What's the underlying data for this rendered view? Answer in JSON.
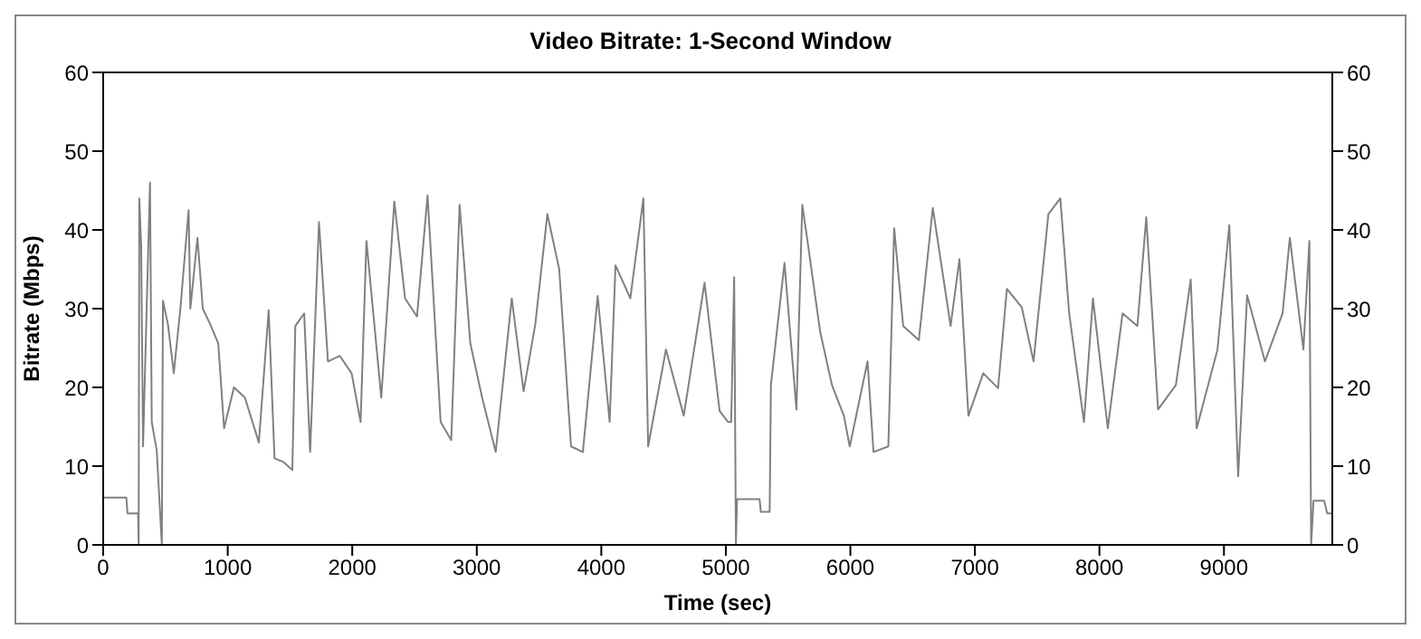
{
  "chart_data": {
    "type": "line",
    "title": "Video Bitrate: 1-Second Window",
    "xlabel": "Time (sec)",
    "ylabel": "Bitrate (Mbps)",
    "xlim": [
      0,
      9870
    ],
    "xticks": [
      0,
      1000,
      2000,
      3000,
      4000,
      5000,
      6000,
      7000,
      8000,
      9000
    ],
    "ylim": [
      0,
      60
    ],
    "yticks": [
      0,
      10,
      20,
      30,
      40,
      50,
      60
    ],
    "y2lim": [
      0,
      60
    ],
    "y2ticks": [
      0,
      10,
      20,
      30,
      40,
      50,
      60
    ],
    "grid": false,
    "legend": false,
    "marker": "none",
    "line_style": "solid",
    "series": [
      {
        "color": "#808080",
        "x": [
          0,
          186,
          195,
          280,
          285,
          290,
          305,
          320,
          376,
          390,
          430,
          471,
          480,
          520,
          567,
          620,
          686,
          700,
          757,
          800,
          860,
          924,
          971,
          1050,
          1138,
          1250,
          1329,
          1376,
          1450,
          1519,
          1543,
          1614,
          1662,
          1733,
          1805,
          1900,
          1995,
          2067,
          2114,
          2233,
          2338,
          2424,
          2520,
          2605,
          2710,
          2795,
          2862,
          2948,
          3043,
          3152,
          3281,
          3376,
          3470,
          3567,
          3662,
          3757,
          3852,
          3971,
          4067,
          4114,
          4233,
          4338,
          4376,
          4519,
          4662,
          4829,
          4950,
          5019,
          5043,
          5067,
          5081,
          5090,
          5271,
          5281,
          5352,
          5362,
          5471,
          5567,
          5614,
          5662,
          5757,
          5852,
          5948,
          5995,
          6138,
          6186,
          6305,
          6352,
          6424,
          6550,
          6662,
          6805,
          6876,
          6948,
          7067,
          7186,
          7257,
          7376,
          7471,
          7590,
          7686,
          7757,
          7876,
          7948,
          8067,
          8186,
          8305,
          8376,
          8471,
          8614,
          8733,
          8781,
          8948,
          9043,
          9114,
          9186,
          9329,
          9471,
          9529,
          9638,
          9686,
          9700,
          9719,
          9805,
          9829,
          9870
        ],
        "values": [
          6,
          6,
          4,
          4,
          0,
          44,
          38,
          12.5,
          46,
          15.6,
          12,
          0,
          31,
          28,
          21.8,
          30,
          42.5,
          30,
          39,
          30,
          28,
          25.6,
          14.8,
          20,
          18.7,
          13,
          29.8,
          11,
          10.5,
          9.5,
          27.8,
          29.4,
          11.8,
          41,
          23.3,
          24,
          21.8,
          15.6,
          38.6,
          18.7,
          43.6,
          31.3,
          29,
          44.4,
          15.6,
          13.3,
          43.2,
          25.6,
          18.7,
          11.8,
          31.3,
          19.5,
          28,
          42,
          35,
          12.5,
          11.8,
          31.6,
          15.6,
          35.5,
          31.3,
          44,
          12.5,
          24.8,
          16.4,
          33.3,
          17,
          15.6,
          15.6,
          34,
          0,
          5.8,
          5.8,
          4.2,
          4.2,
          20.3,
          35.8,
          17.2,
          43.2,
          37.9,
          27.1,
          20.3,
          16.4,
          12.5,
          23.3,
          11.8,
          12.5,
          40.2,
          27.8,
          26,
          42.8,
          27.8,
          36.3,
          16.4,
          21.8,
          19.9,
          32.5,
          30.2,
          23.3,
          42,
          44,
          29.4,
          15.6,
          31.3,
          14.8,
          29.4,
          27.8,
          41.6,
          17.2,
          20.3,
          33.7,
          14.8,
          24.8,
          40.6,
          8.7,
          31.7,
          23.3,
          29.4,
          39,
          24.8,
          38.6,
          0,
          5.6,
          5.6,
          4,
          4
        ]
      }
    ]
  }
}
